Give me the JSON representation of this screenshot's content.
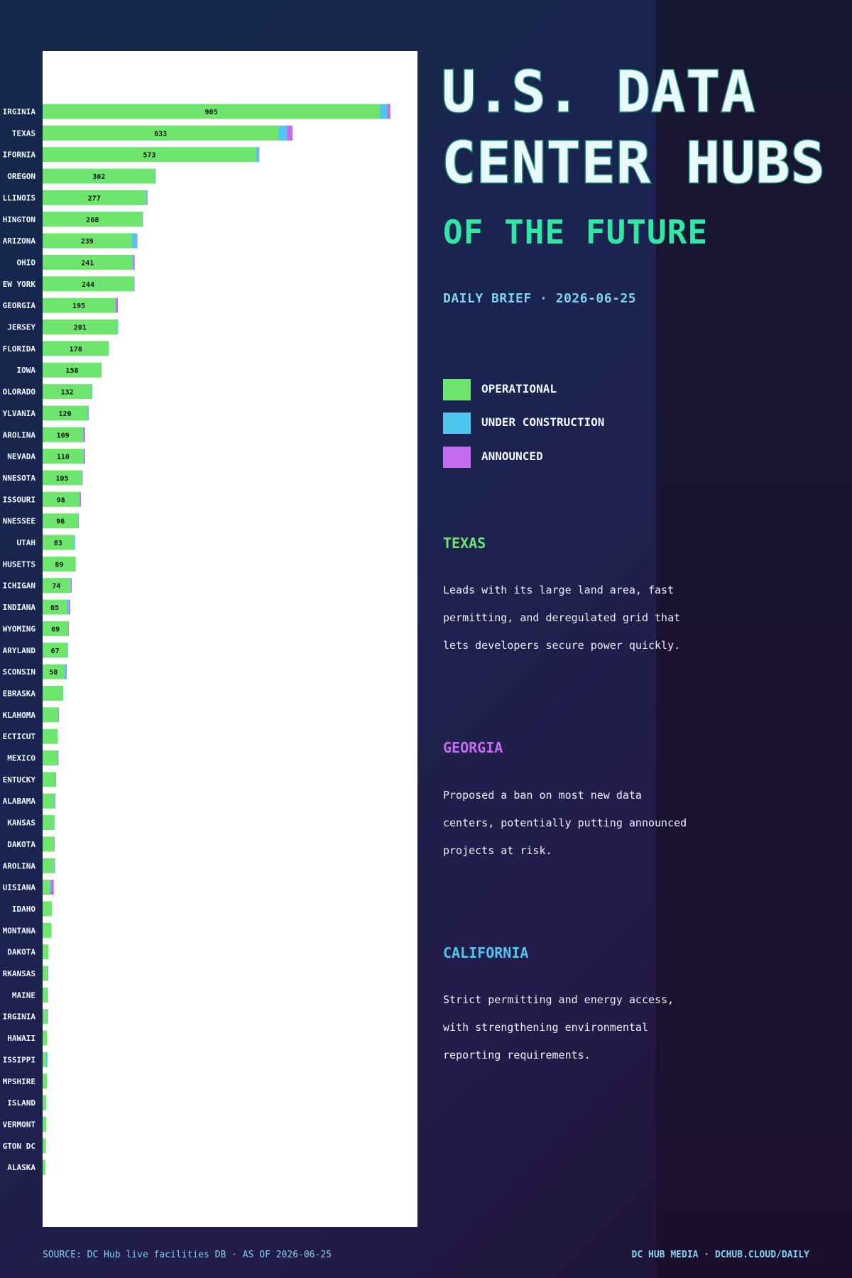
{
  "title_line1": "U.S. DATA",
  "title_line2": "CENTER HUBS",
  "subtitle": "OF THE FUTURE",
  "brief": "DAILY BRIEF · 2026-06-25",
  "legend": [
    {
      "label": "OPERATIONAL",
      "color": "#6ee66e"
    },
    {
      "label": "UNDER CONSTRUCTION",
      "color": "#4ec6f0"
    },
    {
      "label": "ANNOUNCED",
      "color": "#c46cf0"
    }
  ],
  "notes": [
    {
      "head": "TEXAS",
      "color": "#6ee66e",
      "text": "Leads with its large land area, fast permitting, and deregulated grid that lets developers secure power quickly."
    },
    {
      "head": "GEORGIA",
      "color": "#c46cf0",
      "text": "Proposed a ban on most new data centers, potentially putting announced projects at risk."
    },
    {
      "head": "CALIFORNIA",
      "color": "#4ec6f0",
      "text": "Strict permitting and energy access, with strengthening environmental reporting requirements."
    }
  ],
  "source": "SOURCE: DC Hub live facilities DB · AS OF 2026-06-25",
  "credit": "DC HUB MEDIA · DCHUB.CLOUD/DAILY",
  "chart_data": {
    "type": "bar",
    "orientation": "horizontal",
    "stacked": true,
    "grid": false,
    "categories": [
      "IRGINIA",
      "TEXAS",
      "IFORNIA",
      "OREGON",
      "LLINOIS",
      "HINGTON",
      "ARIZONA",
      "OHIO",
      "EW YORK",
      "GEORGIA",
      "JERSEY",
      "FLORIDA",
      "IOWA",
      "OLORADO",
      "YLVANIA",
      "AROLINA",
      "NEVADA",
      "NNESOTA",
      "ISSOURI",
      "NNESSEE",
      "UTAH",
      "HUSETTS",
      "ICHIGAN",
      "INDIANA",
      "WYOMING",
      "ARYLAND",
      "SCONSIN",
      "EBRASKA",
      "KLAHOMA",
      "ECTICUT",
      "MEXICO",
      "ENTUCKY",
      "ALABAMA",
      "KANSAS",
      "DAKOTA",
      "AROLINA",
      "UISIANA",
      "IDAHO",
      "MONTANA",
      "DAKOTA",
      "RKANSAS",
      "MAINE",
      "IRGINIA",
      "HAWAII",
      "ISSIPPI",
      "MPSHIRE",
      "ISLAND",
      "VERMONT",
      "GTON DC",
      "ALASKA"
    ],
    "series": [
      {
        "name": "OPERATIONAL",
        "color": "#6ee66e",
        "values": [
          905,
          633,
          573,
          302,
          277,
          268,
          239,
          241,
          244,
          195,
          201,
          178,
          158,
          132,
          120,
          109,
          110,
          105,
          98,
          96,
          83,
          89,
          74,
          65,
          69,
          67,
          58,
          54,
          41,
          41,
          40,
          35,
          31,
          31,
          31,
          31,
          20,
          25,
          24,
          16,
          13,
          13,
          11,
          12,
          9,
          12,
          10,
          10,
          9,
          8
        ]
      },
      {
        "name": "UNDER CONSTRUCTION",
        "color": "#4ec6f0",
        "values": [
          20,
          22,
          7,
          1,
          3,
          0,
          14,
          2,
          1,
          1,
          1,
          0,
          0,
          1,
          2,
          1,
          1,
          1,
          2,
          0,
          4,
          0,
          2,
          5,
          0,
          1,
          5,
          1,
          1,
          0,
          1,
          0,
          2,
          1,
          0,
          1,
          2,
          0,
          0,
          0,
          1,
          0,
          2,
          0,
          4,
          0,
          0,
          0,
          0,
          0
        ]
      },
      {
        "name": "ANNOUNCED",
        "color": "#c46cf0",
        "values": [
          8,
          16,
          1,
          0,
          1,
          1,
          1,
          4,
          1,
          6,
          0,
          0,
          0,
          0,
          1,
          4,
          3,
          1,
          3,
          1,
          0,
          0,
          2,
          4,
          1,
          0,
          1,
          0,
          1,
          0,
          1,
          1,
          1,
          0,
          1,
          1,
          8,
          0,
          0,
          0,
          1,
          1,
          1,
          0,
          0,
          0,
          0,
          0,
          0,
          0
        ]
      }
    ],
    "value_labels_shown_for_first": 27,
    "xlim": [
      0,
      1000
    ]
  }
}
